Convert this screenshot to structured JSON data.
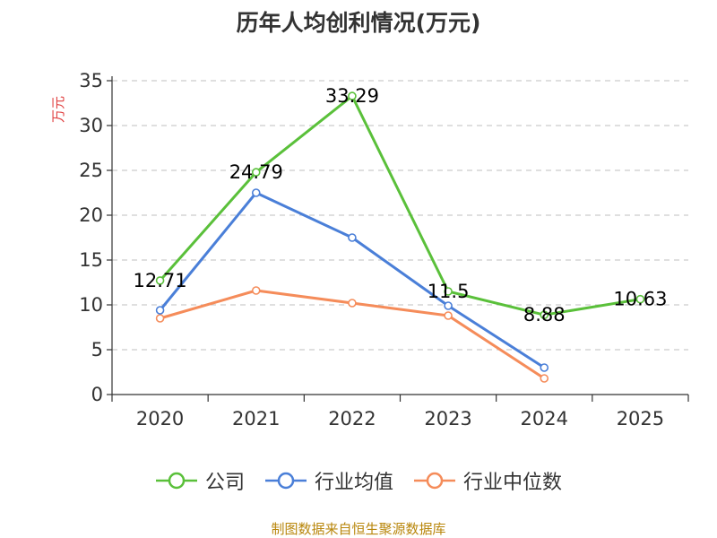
{
  "chart_data": {
    "type": "line",
    "title": "历年人均创利情况(万元)",
    "xlabel": "",
    "ylabel": "万元",
    "categories": [
      "2020",
      "2021",
      "2022",
      "2023",
      "2024",
      "2025"
    ],
    "ylim": [
      0,
      35
    ],
    "yticks": [
      0,
      5,
      10,
      15,
      20,
      25,
      30,
      35
    ],
    "grid": true,
    "legend_position": "bottom",
    "series": [
      {
        "name": "公司",
        "color": "#5ac03a",
        "values": [
          12.71,
          24.79,
          33.29,
          11.5,
          8.88,
          10.63
        ],
        "labels": [
          "12.71",
          "24.79",
          "33.29",
          "11.5",
          "8.88",
          "10.63"
        ]
      },
      {
        "name": "行业均值",
        "color": "#4a7fd8",
        "values": [
          9.4,
          22.5,
          17.5,
          9.9,
          3.0,
          null
        ]
      },
      {
        "name": "行业中位数",
        "color": "#f58c5a",
        "values": [
          8.5,
          11.6,
          10.2,
          8.8,
          1.8,
          null
        ]
      }
    ]
  },
  "source": "制图数据来自恒生聚源数据库"
}
